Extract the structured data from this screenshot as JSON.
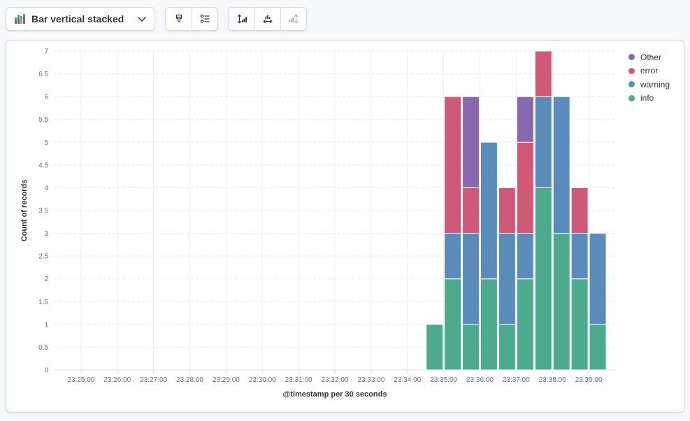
{
  "toolbar": {
    "chart_type_label": "Bar vertical stacked",
    "icons": [
      {
        "name": "bar-vertical-stacked-icon"
      },
      {
        "name": "chevron-down-icon"
      },
      {
        "name": "visual-options-brush-icon"
      },
      {
        "name": "legend-settings-icon"
      },
      {
        "name": "left-axis-icon"
      },
      {
        "name": "bottom-axis-icon"
      },
      {
        "name": "right-axis-icon",
        "state": "disabled"
      }
    ]
  },
  "legend": {
    "position": "right",
    "items": [
      {
        "label": "Other",
        "color": "#8768AE"
      },
      {
        "label": "error",
        "color": "#CE5A78"
      },
      {
        "label": "warning",
        "color": "#5B8BBA"
      },
      {
        "label": "info",
        "color": "#4EAA8C"
      }
    ]
  },
  "chart_data": {
    "type": "bar",
    "stacked": true,
    "orientation": "vertical",
    "title": "",
    "xlabel": "@timestamp per 30 seconds",
    "ylabel": "Count of records",
    "ylim": [
      0,
      7
    ],
    "grid": true,
    "legend_position": "right",
    "y_ticks": [
      "0",
      "0.5",
      "1",
      "1.5",
      "2",
      "2.5",
      "3",
      "3.5",
      "4",
      "4.5",
      "5",
      "5.5",
      "6",
      "6.5",
      "7"
    ],
    "x_ticks": [
      "23:25:00",
      "23:26:00",
      "23:27:00",
      "23:28:00",
      "23:29:00",
      "23:30:00",
      "23:31:00",
      "23:32:00",
      "23:33:00",
      "23:34:00",
      "23:35:00",
      "23:36:00",
      "23:37:00",
      "23:38:00",
      "23:39:00"
    ],
    "x_domain": [
      "23:24:15",
      "23:39:45"
    ],
    "bucket_seconds": 30,
    "categories": [
      "23:34:30",
      "23:35:00",
      "23:35:30",
      "23:36:00",
      "23:36:30",
      "23:37:00",
      "23:37:30",
      "23:38:00",
      "23:38:30",
      "23:39:00"
    ],
    "series": [
      {
        "name": "info",
        "color": "#4EAA8C",
        "values": [
          1,
          2,
          1,
          2,
          1,
          2,
          4,
          3,
          2,
          1
        ]
      },
      {
        "name": "warning",
        "color": "#5B8BBA",
        "values": [
          0,
          1,
          2,
          3,
          2,
          1,
          2,
          3,
          1,
          2
        ]
      },
      {
        "name": "error",
        "color": "#CE5A78",
        "values": [
          0,
          3,
          1,
          0,
          1,
          2,
          1,
          0,
          1,
          0
        ]
      },
      {
        "name": "Other",
        "color": "#8768AE",
        "values": [
          0,
          0,
          2,
          0,
          0,
          1,
          0,
          0,
          0,
          0
        ]
      }
    ],
    "stack_order_bottom_to_top": [
      "info",
      "warning",
      "error",
      "Other"
    ]
  }
}
